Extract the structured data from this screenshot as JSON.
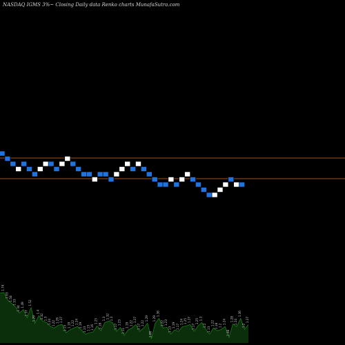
{
  "title": "NASDAQ IGMS 3%~  Closing Daily data  Renko  charts MunafaSutra.com",
  "chart_data": {
    "type": "renko",
    "title": "NASDAQ IGMS 3%~  Closing Daily data  Renko  charts MunafaSutra.com",
    "brick_size_note": "3%",
    "colors": {
      "up": "#ffffff",
      "down": "#1f74e0",
      "reference_line": "#a0521e",
      "volume_fill": "#0b2e0b",
      "volume_line": "#1a8a1a",
      "background": "#000000"
    },
    "reference_lines": [
      1.73,
      1.53
    ],
    "bricks": [
      {
        "x": 0,
        "dir": "down"
      },
      {
        "x": 1,
        "dir": "down"
      },
      {
        "x": 2,
        "dir": "down"
      },
      {
        "x": 3,
        "dir": "up"
      },
      {
        "x": 4,
        "dir": "down"
      },
      {
        "x": 5,
        "dir": "down"
      },
      {
        "x": 6,
        "dir": "down"
      },
      {
        "x": 7,
        "dir": "up"
      },
      {
        "x": 8,
        "dir": "up"
      },
      {
        "x": 9,
        "dir": "down"
      },
      {
        "x": 10,
        "dir": "down"
      },
      {
        "x": 11,
        "dir": "up"
      },
      {
        "x": 12,
        "dir": "up"
      },
      {
        "x": 13,
        "dir": "down"
      },
      {
        "x": 14,
        "dir": "down"
      },
      {
        "x": 15,
        "dir": "down"
      },
      {
        "x": 16,
        "dir": "down"
      },
      {
        "x": 17,
        "dir": "up"
      },
      {
        "x": 18,
        "dir": "down"
      },
      {
        "x": 19,
        "dir": "down"
      },
      {
        "x": 20,
        "dir": "down"
      },
      {
        "x": 21,
        "dir": "up"
      },
      {
        "x": 22,
        "dir": "up"
      },
      {
        "x": 23,
        "dir": "up"
      },
      {
        "x": 24,
        "dir": "down"
      },
      {
        "x": 25,
        "dir": "up"
      },
      {
        "x": 26,
        "dir": "down"
      },
      {
        "x": 27,
        "dir": "down"
      },
      {
        "x": 28,
        "dir": "down"
      },
      {
        "x": 29,
        "dir": "down"
      },
      {
        "x": 30,
        "dir": "down"
      },
      {
        "x": 31,
        "dir": "up"
      },
      {
        "x": 32,
        "dir": "down"
      },
      {
        "x": 33,
        "dir": "up"
      },
      {
        "x": 34,
        "dir": "up"
      },
      {
        "x": 35,
        "dir": "down"
      },
      {
        "x": 36,
        "dir": "down"
      },
      {
        "x": 37,
        "dir": "down"
      },
      {
        "x": 38,
        "dir": "down"
      },
      {
        "x": 39,
        "dir": "up"
      },
      {
        "x": 40,
        "dir": "up"
      },
      {
        "x": 41,
        "dir": "up"
      },
      {
        "x": 42,
        "dir": "down"
      },
      {
        "x": 43,
        "dir": "up"
      },
      {
        "x": 44,
        "dir": "down"
      }
    ],
    "brick_levels": [
      11,
      10,
      9,
      8,
      9,
      8,
      7,
      8,
      9,
      9,
      8,
      9,
      10,
      9,
      8,
      7,
      7,
      6,
      7,
      7,
      6,
      7,
      8,
      9,
      8,
      9,
      8,
      7,
      6,
      5,
      5,
      6,
      5,
      6,
      7,
      6,
      5,
      4,
      3,
      3,
      4,
      5,
      6,
      5,
      5
    ],
    "volume": [
      1.73,
      1.74,
      1.63,
      1.58,
      1.53,
      1.44,
      1.49,
      1.37,
      1.52,
      1.29,
      1.4,
      1.32,
      1.3,
      1.24,
      1.22,
      1.26,
      1.27,
      1.15,
      1.19,
      1.22,
      1.24,
      1.19,
      1.13,
      1.15,
      1.16,
      1.25,
      1.18,
      1.3,
      1.32,
      1.3,
      1.17,
      1.23,
      1.11,
      1.19,
      1.22,
      1.27,
      1.17,
      1.22,
      1.29,
      1.06,
      1.29,
      1.36,
      1.22,
      1.23,
      1.13,
      1.19,
      1.17,
      1.24,
      1.25,
      1.27,
      1.17,
      1.25,
      1.3,
      1.2,
      1.13,
      1.22,
      1.18,
      1.2,
      1.24,
      1.08,
      1.28,
      1.24,
      1.36,
      1.2,
      1.27
    ]
  }
}
